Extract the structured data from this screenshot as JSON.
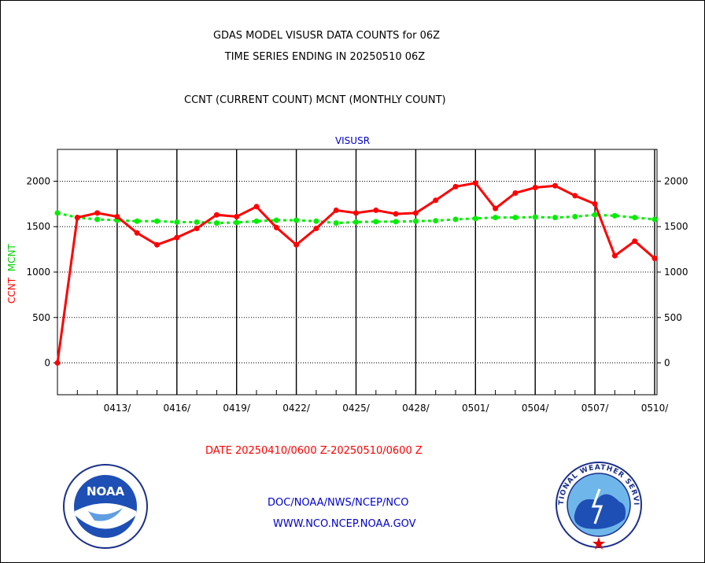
{
  "header": {
    "title_line1": "GDAS MODEL VISUSR DATA COUNTS for 06Z",
    "title_line2": "TIME SERIES ENDING IN 20250510 06Z",
    "subtitle": "CCNT (CURRENT COUNT) MCNT (MONTHLY COUNT)"
  },
  "footer": {
    "date_range": "DATE 20250410/0600 Z-20250510/0600 Z",
    "org_path": "DOC/NOAA/NWS/NCEP/NCO",
    "website": "WWW.NCO.NCEP.NOAA.GOV"
  },
  "logos": {
    "left": {
      "name": "noaa-logo",
      "text": "NOAA"
    },
    "right": {
      "name": "nws-logo",
      "text": "NATIONAL WEATHER SERVICE"
    }
  },
  "chart_data": {
    "type": "line",
    "title": "VISUSR",
    "ylabel_ccnt": "CCNT",
    "ylabel_mcnt": "MCNT",
    "ylim": [
      -350,
      2350
    ],
    "yticks": [
      0,
      500,
      1000,
      1500,
      2000
    ],
    "xtick_labels": [
      "0413/",
      "0416/",
      "0419/",
      "0422/",
      "0425/",
      "0428/",
      "0501/",
      "0504/",
      "0507/",
      "0510/"
    ],
    "x_start": "2025-04-10",
    "x_end": "2025-05-10",
    "grid": true,
    "colors": {
      "ccnt": "#ff0000",
      "mcnt": "#00ee00"
    },
    "series": [
      {
        "name": "CCNT",
        "values": [
          0,
          1600,
          1650,
          1610,
          1430,
          1300,
          1380,
          1480,
          1630,
          1610,
          1720,
          1490,
          1300,
          1480,
          1680,
          1650,
          1680,
          1640,
          1650,
          1790,
          1940,
          1980,
          1700,
          1870,
          1930,
          1950,
          1840,
          1750,
          1180,
          1340,
          1150
        ]
      },
      {
        "name": "MCNT",
        "values": [
          1650,
          1600,
          1580,
          1570,
          1560,
          1560,
          1550,
          1550,
          1540,
          1545,
          1560,
          1570,
          1570,
          1560,
          1540,
          1550,
          1555,
          1555,
          1560,
          1565,
          1580,
          1590,
          1600,
          1600,
          1605,
          1600,
          1610,
          1630,
          1620,
          1600,
          1580
        ]
      }
    ]
  }
}
